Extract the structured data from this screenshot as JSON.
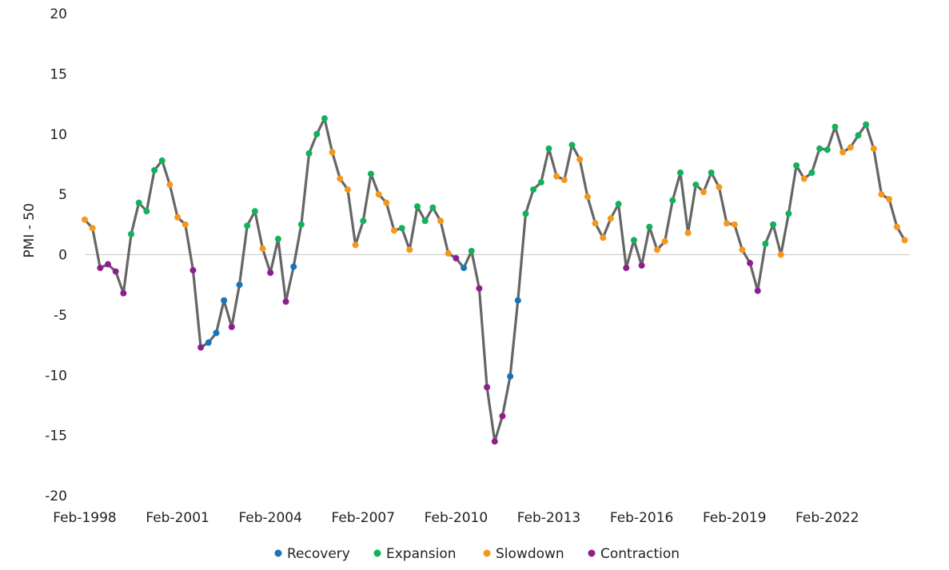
{
  "chart_data": {
    "type": "line",
    "title": "",
    "xlabel": "",
    "ylabel": "PMI - 50",
    "ylim": [
      -20,
      20
    ],
    "yticks": [
      20,
      15,
      10,
      5,
      0,
      -5,
      -10,
      -15,
      -20
    ],
    "xlim": [
      "1998-02",
      "2024-10"
    ],
    "xticks": [
      "Feb-1998",
      "Feb-2001",
      "Feb-2004",
      "Feb-2007",
      "Feb-2010",
      "Feb-2013",
      "Feb-2016",
      "Feb-2019",
      "Feb-2022"
    ],
    "grid": false,
    "zero_line": true,
    "legend_position": "bottom",
    "line_color": "#666666",
    "phases": [
      {
        "name": "Recovery",
        "color": "#1a73b8"
      },
      {
        "name": "Expansion",
        "color": "#12b25a"
      },
      {
        "name": "Slowdown",
        "color": "#f5971d"
      },
      {
        "name": "Contraction",
        "color": "#8e1e8e"
      }
    ],
    "series_anchors": [
      [
        "1998-02",
        2.9,
        "Slowdown"
      ],
      [
        "1998-05",
        2.2,
        "Slowdown"
      ],
      [
        "1998-08",
        -1.1,
        "Contraction"
      ],
      [
        "1998-11",
        -0.8,
        "Contraction"
      ],
      [
        "1999-02",
        -1.4,
        "Contraction"
      ],
      [
        "1999-05",
        -3.2,
        "Contraction"
      ],
      [
        "1999-08",
        1.7,
        "Expansion"
      ],
      [
        "1999-11",
        4.3,
        "Expansion"
      ],
      [
        "2000-02",
        3.6,
        "Expansion"
      ],
      [
        "2000-05",
        7.0,
        "Expansion"
      ],
      [
        "2000-08",
        7.8,
        "Expansion"
      ],
      [
        "2000-11",
        5.8,
        "Slowdown"
      ],
      [
        "2001-02",
        3.1,
        "Slowdown"
      ],
      [
        "2001-05",
        2.5,
        "Slowdown"
      ],
      [
        "2001-08",
        -1.3,
        "Contraction"
      ],
      [
        "2001-11",
        -7.7,
        "Contraction"
      ],
      [
        "2002-02",
        -7.3,
        "Recovery"
      ],
      [
        "2002-05",
        -6.5,
        "Recovery"
      ],
      [
        "2002-08",
        -3.8,
        "Recovery"
      ],
      [
        "2002-11",
        -6.0,
        "Contraction"
      ],
      [
        "2003-02",
        -2.5,
        "Recovery"
      ],
      [
        "2003-05",
        2.4,
        "Expansion"
      ],
      [
        "2003-08",
        3.6,
        "Expansion"
      ],
      [
        "2003-11",
        0.5,
        "Slowdown"
      ],
      [
        "2004-02",
        -1.5,
        "Contraction"
      ],
      [
        "2004-05",
        1.3,
        "Expansion"
      ],
      [
        "2004-08",
        -3.9,
        "Contraction"
      ],
      [
        "2004-11",
        -1.0,
        "Recovery"
      ],
      [
        "2005-02",
        2.5,
        "Expansion"
      ],
      [
        "2005-05",
        8.4,
        "Expansion"
      ],
      [
        "2005-08",
        10.0,
        "Expansion"
      ],
      [
        "2005-11",
        11.3,
        "Expansion"
      ],
      [
        "2006-02",
        8.5,
        "Slowdown"
      ],
      [
        "2006-05",
        6.3,
        "Slowdown"
      ],
      [
        "2006-08",
        5.4,
        "Slowdown"
      ],
      [
        "2006-11",
        0.8,
        "Slowdown"
      ],
      [
        "2007-02",
        2.8,
        "Expansion"
      ],
      [
        "2007-05",
        6.7,
        "Expansion"
      ],
      [
        "2007-08",
        5.0,
        "Slowdown"
      ],
      [
        "2007-11",
        4.3,
        "Slowdown"
      ],
      [
        "2008-02",
        2.0,
        "Slowdown"
      ],
      [
        "2008-05",
        2.2,
        "Expansion"
      ],
      [
        "2008-08",
        0.4,
        "Slowdown"
      ],
      [
        "2008-11",
        4.0,
        "Expansion"
      ],
      [
        "2009-02",
        2.8,
        "Expansion"
      ],
      [
        "2009-05",
        3.9,
        "Expansion"
      ],
      [
        "2009-08",
        2.8,
        "Slowdown"
      ],
      [
        "2009-11",
        0.1,
        "Slowdown"
      ],
      [
        "2010-02",
        -0.3,
        "Contraction"
      ],
      [
        "2010-05",
        -1.1,
        "Recovery"
      ],
      [
        "2010-08",
        0.3,
        "Expansion"
      ],
      [
        "2010-11",
        -2.8,
        "Contraction"
      ],
      [
        "2011-02",
        -11.0,
        "Contraction"
      ],
      [
        "2011-05",
        -15.5,
        "Contraction"
      ],
      [
        "2011-08",
        -13.4,
        "Contraction"
      ],
      [
        "2011-11",
        -10.1,
        "Recovery"
      ],
      [
        "2012-02",
        -3.8,
        "Recovery"
      ],
      [
        "2012-05",
        3.4,
        "Expansion"
      ],
      [
        "2012-08",
        5.4,
        "Expansion"
      ],
      [
        "2012-11",
        6.0,
        "Expansion"
      ],
      [
        "2013-02",
        8.8,
        "Expansion"
      ],
      [
        "2013-05",
        6.5,
        "Slowdown"
      ],
      [
        "2013-08",
        6.2,
        "Slowdown"
      ],
      [
        "2013-11",
        9.1,
        "Expansion"
      ],
      [
        "2014-02",
        7.9,
        "Slowdown"
      ],
      [
        "2014-05",
        4.8,
        "Slowdown"
      ],
      [
        "2014-08",
        2.6,
        "Slowdown"
      ],
      [
        "2014-11",
        1.4,
        "Slowdown"
      ],
      [
        "2015-02",
        3.0,
        "Slowdown"
      ],
      [
        "2015-05",
        4.2,
        "Expansion"
      ],
      [
        "2015-08",
        -1.1,
        "Contraction"
      ],
      [
        "2015-11",
        1.2,
        "Expansion"
      ],
      [
        "2016-02",
        -0.9,
        "Contraction"
      ],
      [
        "2016-05",
        2.3,
        "Expansion"
      ],
      [
        "2016-08",
        0.4,
        "Slowdown"
      ],
      [
        "2016-11",
        1.1,
        "Slowdown"
      ],
      [
        "2017-02",
        4.5,
        "Expansion"
      ],
      [
        "2017-05",
        6.8,
        "Expansion"
      ],
      [
        "2017-08",
        1.8,
        "Slowdown"
      ],
      [
        "2017-11",
        5.8,
        "Expansion"
      ],
      [
        "2018-02",
        5.2,
        "Slowdown"
      ],
      [
        "2018-05",
        6.8,
        "Expansion"
      ],
      [
        "2018-08",
        5.6,
        "Slowdown"
      ],
      [
        "2018-11",
        2.6,
        "Slowdown"
      ],
      [
        "2019-02",
        2.5,
        "Slowdown"
      ],
      [
        "2019-05",
        0.4,
        "Slowdown"
      ],
      [
        "2019-08",
        -0.7,
        "Contraction"
      ],
      [
        "2019-11",
        -3.0,
        "Contraction"
      ],
      [
        "2020-02",
        0.9,
        "Expansion"
      ],
      [
        "2020-05",
        2.5,
        "Expansion"
      ],
      [
        "2020-08",
        0.0,
        "Slowdown"
      ],
      [
        "2020-11",
        3.4,
        "Expansion"
      ],
      [
        "2021-02",
        7.4,
        "Expansion"
      ],
      [
        "2021-05",
        6.3,
        "Slowdown"
      ],
      [
        "2021-08",
        6.8,
        "Expansion"
      ],
      [
        "2021-11",
        8.8,
        "Expansion"
      ],
      [
        "2022-02",
        8.7,
        "Expansion"
      ],
      [
        "2022-05",
        10.6,
        "Expansion"
      ],
      [
        "2022-08",
        8.5,
        "Slowdown"
      ],
      [
        "2022-11",
        8.9,
        "Slowdown"
      ],
      [
        "2023-02",
        9.9,
        "Expansion"
      ],
      [
        "2023-05",
        10.8,
        "Expansion"
      ],
      [
        "2023-08",
        8.8,
        "Slowdown"
      ],
      [
        "2023-11",
        5.0,
        "Slowdown"
      ],
      [
        "2024-02",
        4.6,
        "Slowdown"
      ],
      [
        "2024-05",
        2.3,
        "Slowdown"
      ],
      [
        "2024-08",
        1.2,
        "Slowdown"
      ]
    ]
  }
}
